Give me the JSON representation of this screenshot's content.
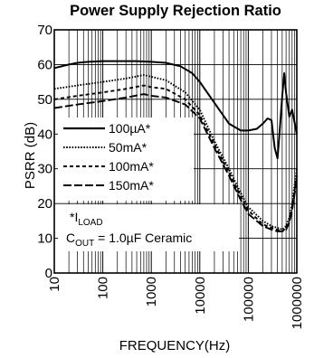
{
  "chart_data": {
    "type": "line",
    "title": "Power Supply Rejection Ratio",
    "xlabel": "FREQUENCY(Hz)",
    "ylabel": "PSRR (dB)",
    "xscale": "log",
    "xlim": [
      10,
      1000000
    ],
    "ylim": [
      0,
      70
    ],
    "xticks": [
      "10",
      "100",
      "1000",
      "10000",
      "100000",
      "1000000"
    ],
    "yticks": [
      "0",
      "10",
      "20",
      "30",
      "40",
      "50",
      "60",
      "70"
    ],
    "grid": true,
    "legend_position": "center-left",
    "series": [
      {
        "name": "100µA*",
        "style": "solid",
        "x": [
          10,
          20,
          30,
          50,
          100,
          200,
          500,
          1000,
          2000,
          4000,
          7000,
          10000,
          20000,
          40000,
          70000,
          100000,
          150000,
          200000,
          250000,
          300000,
          350000,
          400000,
          450000,
          500000,
          550000,
          600000,
          700000,
          800000,
          1000000
        ],
        "y": [
          59,
          60,
          60.5,
          60.8,
          61,
          61,
          61,
          60.8,
          60.5,
          59.5,
          57.5,
          55,
          49,
          43,
          41,
          41,
          41.5,
          43,
          44.5,
          44,
          36,
          33,
          42,
          51,
          57.5,
          52,
          45,
          47,
          40
        ]
      },
      {
        "name": "50mA*",
        "style": "dotted",
        "x": [
          10,
          30,
          100,
          300,
          700,
          1000,
          2000,
          5000,
          10000,
          20000,
          40000,
          70000,
          100000,
          200000,
          300000,
          400000,
          500000,
          600000,
          700000,
          800000,
          1000000
        ],
        "y": [
          53,
          54,
          55,
          56,
          57,
          56.5,
          55.5,
          52,
          47,
          38,
          30,
          23,
          19,
          15,
          13.5,
          13,
          12.5,
          13.5,
          16,
          20,
          30
        ]
      },
      {
        "name": "100mA*",
        "style": "dashed",
        "x": [
          10,
          30,
          100,
          300,
          700,
          1000,
          2000,
          5000,
          10000,
          20000,
          40000,
          70000,
          100000,
          200000,
          300000,
          400000,
          500000,
          600000,
          700000,
          800000,
          1000000
        ],
        "y": [
          50,
          51,
          52,
          53,
          54,
          53.5,
          53,
          50,
          45.5,
          37,
          29,
          22,
          18,
          14,
          13,
          12.5,
          12,
          13,
          15,
          19,
          28
        ]
      },
      {
        "name": "150mA*",
        "style": "long-dashed",
        "x": [
          10,
          30,
          100,
          300,
          700,
          1000,
          2000,
          5000,
          10000,
          20000,
          40000,
          70000,
          100000,
          200000,
          300000,
          400000,
          500000,
          600000,
          700000,
          800000,
          1000000
        ],
        "y": [
          47.5,
          48.5,
          49.5,
          50.5,
          51.5,
          51,
          50.5,
          48.5,
          44.5,
          36,
          28,
          21,
          17,
          13.5,
          12.5,
          12,
          12,
          12.5,
          14.5,
          18,
          27
        ]
      }
    ],
    "annotations": [
      {
        "prefix": "*",
        "main": "I",
        "sub": "LOAD"
      },
      {
        "main": "C",
        "sub": "OUT",
        "suffix": " = 1.0µF Ceramic"
      }
    ]
  }
}
